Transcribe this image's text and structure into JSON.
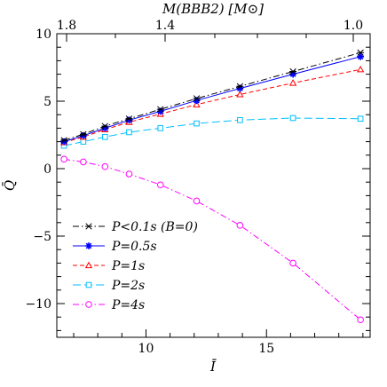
{
  "chart_data": {
    "type": "line",
    "x_axis": {
      "label": "Ī",
      "range": [
        6.3,
        19.3
      ],
      "ticks": [
        10,
        15
      ],
      "tick_labels": [
        "10",
        "15"
      ]
    },
    "y_axis": {
      "label": "Q̄",
      "range": [
        -12.5,
        10
      ],
      "ticks": [
        10,
        5,
        0,
        -5,
        -10
      ],
      "tick_labels": [
        "10",
        "5",
        "0",
        "−5",
        "−10"
      ]
    },
    "top_axis": {
      "label": "M(BBB2) [M⊙]",
      "tick_labels": [
        "1.8",
        "1.4",
        "1.0"
      ]
    },
    "x": [
      6.6,
      7.4,
      8.3,
      9.3,
      10.6,
      12.1,
      13.9,
      16.1,
      18.9
    ],
    "series": [
      {
        "name": "P<0.1s (B=0)",
        "color": "#000000",
        "marker": "x",
        "dash": "dashdot",
        "values": [
          2.1,
          2.55,
          3.15,
          3.7,
          4.4,
          5.2,
          6.1,
          7.2,
          8.6
        ]
      },
      {
        "name": "P=0.5s",
        "color": "#0000ff",
        "marker": "star",
        "dash": "solid",
        "values": [
          2.0,
          2.45,
          3.0,
          3.6,
          4.25,
          5.05,
          5.95,
          7.0,
          8.3
        ]
      },
      {
        "name": "P=1s",
        "color": "#ff0000",
        "marker": "triangle",
        "dash": "dashed",
        "values": [
          1.95,
          2.35,
          2.9,
          3.45,
          4.05,
          4.75,
          5.5,
          6.35,
          7.35
        ]
      },
      {
        "name": "P=2s",
        "color": "#00bfff",
        "marker": "square",
        "dash": "longdash",
        "values": [
          1.7,
          2.0,
          2.35,
          2.7,
          3.0,
          3.35,
          3.6,
          3.75,
          3.7
        ]
      },
      {
        "name": "P=4s",
        "color": "#ff00ff",
        "marker": "circle",
        "dash": "dashdot",
        "values": [
          0.7,
          0.5,
          0.15,
          -0.4,
          -1.2,
          -2.4,
          -4.2,
          -7.0,
          -11.2
        ]
      }
    ],
    "legend": {
      "position": "bottom-left",
      "entries": [
        {
          "label": "P<0.1s (B=0)"
        },
        {
          "label": "P=0.5s"
        },
        {
          "label": "P=1s"
        },
        {
          "label": "P=2s"
        },
        {
          "label": "P=4s"
        }
      ]
    },
    "grid": false
  }
}
